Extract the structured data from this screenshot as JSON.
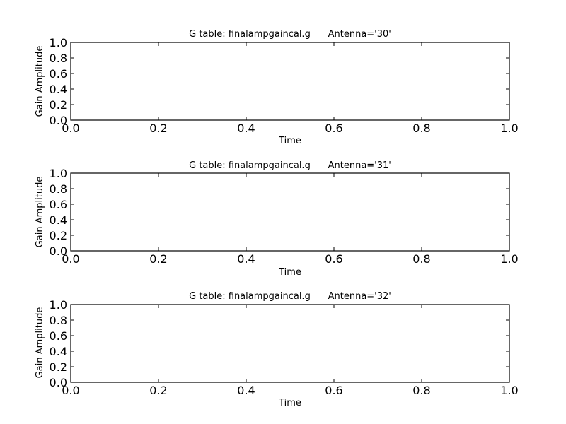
{
  "chart_data": [
    {
      "type": "scatter",
      "title": "G table: finalampgaincal.g      Antenna='30'",
      "xlabel": "Time",
      "ylabel": "Gain Amplitude",
      "xlim": [
        0.0,
        1.0
      ],
      "ylim": [
        0.0,
        1.0
      ],
      "xticks": [
        "0.0",
        "0.2",
        "0.4",
        "0.6",
        "0.8",
        "1.0"
      ],
      "yticks": [
        "0.0",
        "0.2",
        "0.4",
        "0.6",
        "0.8",
        "1.0"
      ],
      "x": [],
      "y": [],
      "grid": false
    },
    {
      "type": "scatter",
      "title": "G table: finalampgaincal.g      Antenna='31'",
      "xlabel": "Time",
      "ylabel": "Gain Amplitude",
      "xlim": [
        0.0,
        1.0
      ],
      "ylim": [
        0.0,
        1.0
      ],
      "xticks": [
        "0.0",
        "0.2",
        "0.4",
        "0.6",
        "0.8",
        "1.0"
      ],
      "yticks": [
        "0.0",
        "0.2",
        "0.4",
        "0.6",
        "0.8",
        "1.0"
      ],
      "x": [],
      "y": [],
      "grid": false
    },
    {
      "type": "scatter",
      "title": "G table: finalampgaincal.g      Antenna='32'",
      "xlabel": "Time",
      "ylabel": "Gain Amplitude",
      "xlim": [
        0.0,
        1.0
      ],
      "ylim": [
        0.0,
        1.0
      ],
      "xticks": [
        "0.0",
        "0.2",
        "0.4",
        "0.6",
        "0.8",
        "1.0"
      ],
      "yticks": [
        "0.0",
        "0.2",
        "0.4",
        "0.6",
        "0.8",
        "1.0"
      ],
      "x": [],
      "y": [],
      "grid": false
    }
  ]
}
